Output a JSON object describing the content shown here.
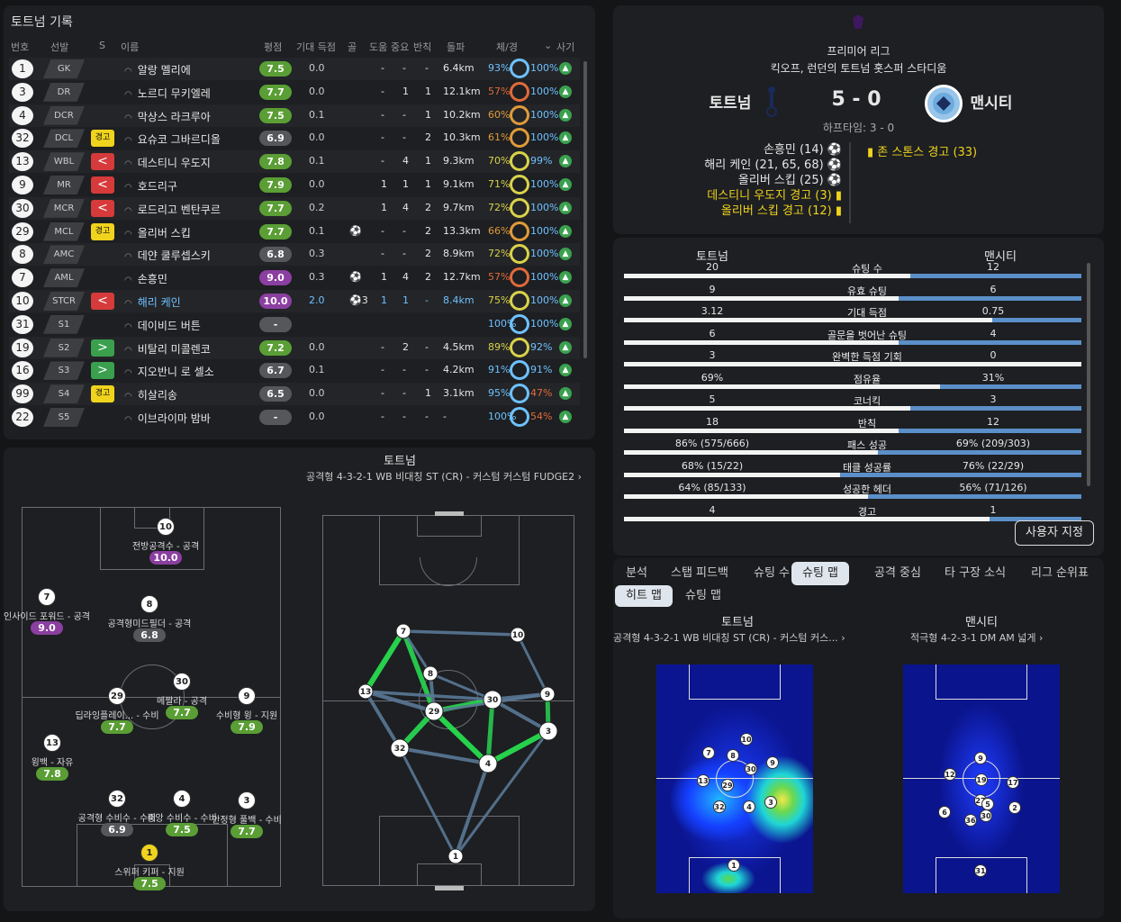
{
  "stats": {
    "title": "토트넘 기록",
    "headers": {
      "num": "번호",
      "pos": "선발",
      "sub": "S",
      "name": "이름",
      "rating": "평점",
      "xg": "기대 득점",
      "goals": "골",
      "assists": "도움",
      "key": "중요",
      "tackles": "반칙",
      "distance": "돌파",
      "condition": "체/경",
      "sharp": "사기"
    },
    "players": [
      {
        "num": "1",
        "pos": "GK",
        "badge": "",
        "name": "알랑 멜리에",
        "rating": "7.5",
        "rclass": "green",
        "xg": "0.0",
        "goals": "",
        "assists": "-",
        "key": "-",
        "tackles": "-",
        "dist": "6.4km",
        "cond": "93%",
        "sharp": "100%"
      },
      {
        "num": "3",
        "pos": "DR",
        "badge": "",
        "name": "노르디 무키엘레",
        "rating": "7.7",
        "rclass": "green",
        "xg": "0.0",
        "goals": "",
        "assists": "-",
        "key": "1",
        "tackles": "1",
        "dist": "12.1km",
        "cond": "57%",
        "sharp": "100%"
      },
      {
        "num": "4",
        "pos": "DCR",
        "badge": "",
        "name": "막상스 라크루아",
        "rating": "7.5",
        "rclass": "green",
        "xg": "0.1",
        "goals": "",
        "assists": "-",
        "key": "-",
        "tackles": "1",
        "dist": "10.2km",
        "cond": "60%",
        "sharp": "100%"
      },
      {
        "num": "32",
        "pos": "DCL",
        "badge": "경고",
        "bclass": "yellow",
        "name": "요슈코 그바르디올",
        "rating": "6.9",
        "rclass": "dark",
        "xg": "0.0",
        "goals": "",
        "assists": "-",
        "key": "-",
        "tackles": "2",
        "dist": "10.3km",
        "cond": "61%",
        "sharp": "100%"
      },
      {
        "num": "13",
        "pos": "WBL",
        "badge": "<",
        "bclass": "red",
        "name": "데스티니 우도지",
        "rating": "7.8",
        "rclass": "green",
        "xg": "0.1",
        "goals": "",
        "assists": "-",
        "key": "4",
        "tackles": "1",
        "dist": "9.3km",
        "cond": "70%",
        "sharp": "99%"
      },
      {
        "num": "9",
        "pos": "MR",
        "badge": "<",
        "bclass": "red",
        "name": "호드리구",
        "rating": "7.9",
        "rclass": "green",
        "xg": "0.0",
        "goals": "",
        "assists": "1",
        "key": "1",
        "tackles": "1",
        "dist": "9.1km",
        "cond": "71%",
        "sharp": "100%"
      },
      {
        "num": "30",
        "pos": "MCR",
        "badge": "<",
        "bclass": "red",
        "name": "로드리고 벤탄쿠르",
        "rating": "7.7",
        "rclass": "green",
        "xg": "0.2",
        "goals": "",
        "assists": "1",
        "key": "4",
        "tackles": "2",
        "dist": "9.7km",
        "cond": "72%",
        "sharp": "100%"
      },
      {
        "num": "29",
        "pos": "MCL",
        "badge": "경고",
        "bclass": "yellow",
        "name": "올리버 스킵",
        "rating": "7.7",
        "rclass": "green",
        "xg": "0.1",
        "goals": "⚽",
        "assists": "-",
        "key": "-",
        "tackles": "2",
        "dist": "13.3km",
        "cond": "66%",
        "sharp": "100%"
      },
      {
        "num": "8",
        "pos": "AMC",
        "badge": "",
        "name": "데얀 쿨루셉스키",
        "rating": "6.8",
        "rclass": "dark",
        "xg": "0.3",
        "goals": "",
        "assists": "-",
        "key": "-",
        "tackles": "2",
        "dist": "8.9km",
        "cond": "72%",
        "sharp": "100%"
      },
      {
        "num": "7",
        "pos": "AML",
        "badge": "",
        "name": "손흥민",
        "rating": "9.0",
        "rclass": "purple",
        "xg": "0.3",
        "goals": "⚽",
        "assists": "1",
        "key": "4",
        "tackles": "2",
        "dist": "12.7km",
        "cond": "57%",
        "sharp": "100%"
      },
      {
        "num": "10",
        "pos": "STCR",
        "badge": "<",
        "bclass": "red",
        "name": "해리 케인",
        "rating": "10.0",
        "rclass": "purple",
        "xg": "2.0",
        "goals": "⚽3",
        "assists": "1",
        "key": "1",
        "tackles": "-",
        "dist": "8.4km",
        "cond": "75%",
        "sharp": "100%",
        "highlight": true
      },
      {
        "num": "31",
        "pos": "S1",
        "badge": "",
        "name": "데이비드 버튼",
        "rating": "-",
        "rclass": "grey",
        "xg": "",
        "goals": "",
        "assists": "",
        "key": "",
        "tackles": "",
        "dist": "",
        "cond": "100%",
        "sharp": "100%"
      },
      {
        "num": "19",
        "pos": "S2",
        "badge": ">",
        "bclass": "green",
        "name": "비탈리 미콜렌코",
        "rating": "7.2",
        "rclass": "green",
        "xg": "0.0",
        "goals": "",
        "assists": "-",
        "key": "2",
        "tackles": "-",
        "dist": "4.5km",
        "cond": "89%",
        "sharp": "92%"
      },
      {
        "num": "16",
        "pos": "S3",
        "badge": ">",
        "bclass": "green",
        "name": "지오반니 로 셀소",
        "rating": "6.7",
        "rclass": "dark",
        "xg": "0.1",
        "goals": "",
        "assists": "-",
        "key": "-",
        "tackles": "-",
        "dist": "4.2km",
        "cond": "91%",
        "sharp": "91%"
      },
      {
        "num": "99",
        "pos": "S4",
        "badge": "경고",
        "bclass": "yellow",
        "name": "히살리송",
        "rating": "6.5",
        "rclass": "dark",
        "xg": "0.0",
        "goals": "",
        "assists": "-",
        "key": "-",
        "tackles": "1",
        "dist": "3.1km",
        "cond": "95%",
        "sharp": "47%"
      },
      {
        "num": "22",
        "pos": "S5",
        "badge": "",
        "name": "이브라이마 밤바",
        "rating": "-",
        "rclass": "grey",
        "xg": "0.0",
        "goals": "",
        "assists": "-",
        "key": "-",
        "tackles": "-",
        "dist": "-",
        "cond": "100%",
        "sharp": "54%"
      }
    ]
  },
  "tactics": {
    "team": "토트넘",
    "formation": "공격형 4-3-2-1 WB 비대칭 ST (CR) - 커스텀 커스텀 FUDGE2",
    "players": [
      {
        "num": "10",
        "label": "전방공격수 - 공격",
        "rating": "10.0",
        "rclass": "purple"
      },
      {
        "num": "7",
        "label": "인사이드 포워드 - 공격",
        "rating": "9.0",
        "rclass": "purple"
      },
      {
        "num": "8",
        "label": "공격형미드필더 - 공격",
        "rating": "6.8",
        "rclass": "dark"
      },
      {
        "num": "29",
        "label": "딥라잉플레이... - 수비",
        "rating": "7.7",
        "rclass": "green"
      },
      {
        "num": "30",
        "label": "메짤라 - 공격",
        "rating": "7.7",
        "rclass": "green"
      },
      {
        "num": "9",
        "label": "수비형 윙 - 지원",
        "rating": "7.9",
        "rclass": "green"
      },
      {
        "num": "13",
        "label": "윙백 - 자유",
        "rating": "7.8",
        "rclass": "green"
      },
      {
        "num": "32",
        "label": "공격형 수비수 - 수비",
        "rating": "6.9",
        "rclass": "dark"
      },
      {
        "num": "4",
        "label": "중앙 수비수 - 수비",
        "rating": "7.5",
        "rclass": "green"
      },
      {
        "num": "3",
        "label": "안정형 풀백 - 수비",
        "rating": "7.7",
        "rclass": "green"
      },
      {
        "num": "1",
        "label": "스위퍼 키퍼 - 지원",
        "rating": "7.5",
        "rclass": "green"
      }
    ],
    "passmap": [
      "7",
      "10",
      "8",
      "13",
      "29",
      "30",
      "9",
      "32",
      "4",
      "3",
      "1"
    ]
  },
  "match": {
    "league": "프리미어 리그",
    "venue": "킥오프, 런던의 토트넘 홋스퍼 스타디움",
    "home": "토트넘",
    "away": "맨시티",
    "score": "5 - 0",
    "halftime": "하프타임: 3 - 0",
    "events_home": [
      "손흥민 (14) ⚽",
      "해리 케인 (21, 65, 68) ⚽",
      "올리버 스킵 (25) ⚽"
    ],
    "cards_home": [
      "데스티니 우도지 경고 (3)",
      "올리버 스킵 경고 (12)"
    ],
    "cards_away": [
      "존 스톤스 경고 (33)"
    ]
  },
  "comparison": {
    "home": "토트넘",
    "away": "맨시티",
    "rows": [
      {
        "label": "슈팅 수",
        "h": "20",
        "a": "12",
        "hv": 20,
        "av": 12
      },
      {
        "label": "유효 슈팅",
        "h": "9",
        "a": "6",
        "hv": 9,
        "av": 6
      },
      {
        "label": "기대 득점",
        "h": "3.12",
        "a": "0.75",
        "hv": 3.12,
        "av": 0.75
      },
      {
        "label": "골문을 벗어난 슈팅",
        "h": "6",
        "a": "4",
        "hv": 6,
        "av": 4
      },
      {
        "label": "완벽한 득점 기회",
        "h": "3",
        "a": "0",
        "hv": 3,
        "av": 0
      },
      {
        "label": "점유율",
        "h": "69%",
        "a": "31%",
        "hv": 69,
        "av": 31
      },
      {
        "label": "코너킥",
        "h": "5",
        "a": "3",
        "hv": 5,
        "av": 3
      },
      {
        "label": "반칙",
        "h": "18",
        "a": "12",
        "hv": 18,
        "av": 12
      },
      {
        "label": "패스 성공",
        "h": "86% (575/666)",
        "a": "69% (209/303)",
        "hv": 86,
        "av": 69
      },
      {
        "label": "태클 성공률",
        "h": "68% (15/22)",
        "a": "76% (22/29)",
        "hv": 68,
        "av": 76
      },
      {
        "label": "성공한 헤더",
        "h": "64% (85/133)",
        "a": "56% (71/126)",
        "hv": 64,
        "av": 56
      },
      {
        "label": "경고",
        "h": "4",
        "a": "1",
        "hv": 4,
        "av": 1
      }
    ],
    "customize": "사용자 지정"
  },
  "tabs": [
    "분석",
    "스탭 피드백",
    "슈팅 수",
    "슈팅 맵",
    "공격 중심",
    "타 구장 소식",
    "리그 순위표"
  ],
  "active_tab": "슈팅 맵",
  "subtabs": [
    "히트 맵",
    "슈팅 맵"
  ],
  "heat": {
    "home": "토트넘",
    "home_formation": "공격형 4-3-2-1 WB 비대칭 ST (CR) - 커스텀 커스...",
    "away": "맨시티",
    "away_formation": "적극형 4-2-3-1 DM AM 넓게"
  },
  "colors": {
    "bg": "#131517",
    "panel": "#1d1f22",
    "green": "#5a9e35",
    "purple": "#8b3fa0",
    "yellow": "#f0d31c",
    "red": "#d63a3a",
    "blue": "#5b8fc8"
  }
}
